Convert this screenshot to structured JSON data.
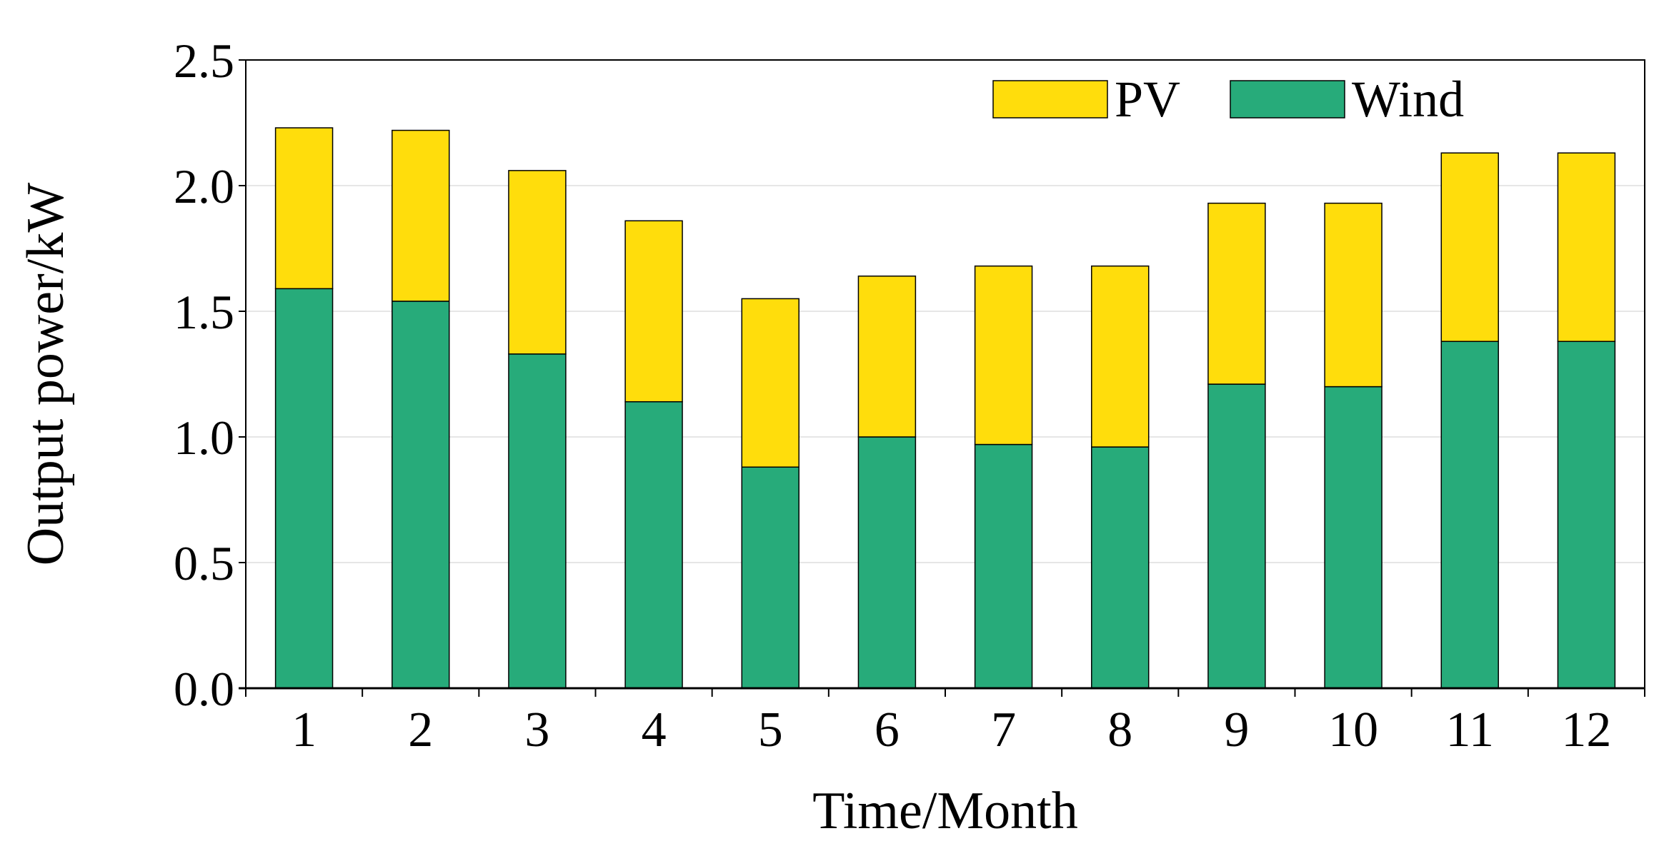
{
  "chart_data": {
    "type": "bar",
    "stacked": true,
    "title": "",
    "xlabel": "Time/Month",
    "ylabel": "Output power/kW",
    "categories": [
      "1",
      "2",
      "3",
      "4",
      "5",
      "6",
      "7",
      "8",
      "9",
      "10",
      "11",
      "12"
    ],
    "series": [
      {
        "name": "Wind",
        "color": "#27ab7a",
        "values": [
          1.59,
          1.54,
          1.33,
          1.14,
          0.88,
          1.0,
          0.97,
          0.96,
          1.21,
          1.2,
          1.38,
          1.38
        ]
      },
      {
        "name": "PV",
        "color": "#ffdd0c",
        "values": [
          0.64,
          0.68,
          0.73,
          0.72,
          0.67,
          0.64,
          0.71,
          0.72,
          0.72,
          0.73,
          0.75,
          0.75
        ]
      }
    ],
    "legend_order": [
      "PV",
      "Wind"
    ],
    "legend_position": "top-right",
    "ylim": [
      0,
      2.5
    ],
    "yticks": [
      "0.0",
      "0.5",
      "1.0",
      "1.5",
      "2.0",
      "2.5"
    ],
    "grid": true
  }
}
